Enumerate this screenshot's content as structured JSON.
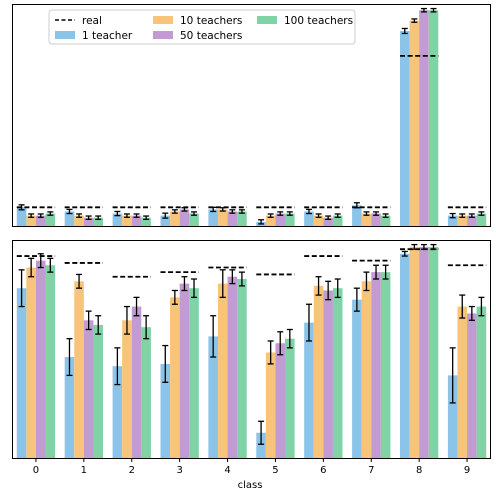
{
  "chart_data": {
    "type": "bar",
    "xlabel": "class",
    "categories": [
      "0",
      "1",
      "2",
      "3",
      "4",
      "5",
      "6",
      "7",
      "8",
      "9"
    ],
    "legend": {
      "placement": "upper-left",
      "entries": [
        "real",
        "1 teacher",
        "10 teachers",
        "50 teachers",
        "100 teachers"
      ]
    },
    "colors": {
      "real": "#000000",
      "1 teacher": "#8bc4e8",
      "10 teachers": "#f7c47a",
      "50 teachers": "#c39bd3",
      "100 teachers": "#7fd3a5"
    },
    "panels": [
      {
        "panel": "top",
        "ylim": [
          0,
          1
        ],
        "real": [
          0.09,
          0.09,
          0.09,
          0.09,
          0.09,
          0.09,
          0.09,
          0.09,
          0.82,
          0.09
        ],
        "series": [
          {
            "name": "1 teacher",
            "values": [
              0.09,
              0.07,
              0.06,
              0.05,
              0.08,
              0.02,
              0.07,
              0.1,
              0.94,
              0.05
            ],
            "errors": [
              0.012,
              0.01,
              0.01,
              0.012,
              0.01,
              0.01,
              0.01,
              0.012,
              0.012,
              0.01
            ]
          },
          {
            "name": "10 teachers",
            "values": [
              0.05,
              0.05,
              0.05,
              0.07,
              0.08,
              0.05,
              0.05,
              0.06,
              0.99,
              0.05
            ],
            "errors": [
              0.008,
              0.008,
              0.008,
              0.008,
              0.008,
              0.008,
              0.008,
              0.008,
              0.008,
              0.008
            ]
          },
          {
            "name": "50 teachers",
            "values": [
              0.05,
              0.04,
              0.05,
              0.08,
              0.07,
              0.06,
              0.04,
              0.06,
              1.04,
              0.05
            ],
            "errors": [
              0.008,
              0.008,
              0.008,
              0.008,
              0.008,
              0.008,
              0.008,
              0.008,
              0.008,
              0.008
            ]
          },
          {
            "name": "100 teachers",
            "values": [
              0.06,
              0.04,
              0.04,
              0.06,
              0.07,
              0.06,
              0.05,
              0.05,
              1.04,
              0.06
            ],
            "errors": [
              0.008,
              0.008,
              0.008,
              0.008,
              0.008,
              0.008,
              0.008,
              0.008,
              0.008,
              0.008
            ]
          }
        ]
      },
      {
        "panel": "bottom",
        "ylim": [
          0,
          1
        ],
        "real": [
          0.88,
          0.85,
          0.79,
          0.81,
          0.83,
          0.8,
          0.88,
          0.86,
          0.91,
          0.84
        ],
        "series": [
          {
            "name": "1 teacher",
            "values": [
              0.74,
              0.44,
              0.4,
              0.41,
              0.53,
              0.11,
              0.59,
              0.69,
              0.89,
              0.36
            ],
            "errors": [
              0.08,
              0.08,
              0.08,
              0.08,
              0.09,
              0.05,
              0.08,
              0.05,
              0.01,
              0.12
            ]
          },
          {
            "name": "10 teachers",
            "values": [
              0.83,
              0.77,
              0.6,
              0.7,
              0.76,
              0.46,
              0.75,
              0.77,
              0.92,
              0.66
            ],
            "errors": [
              0.04,
              0.03,
              0.06,
              0.03,
              0.06,
              0.05,
              0.04,
              0.04,
              0.01,
              0.05
            ]
          },
          {
            "name": "50 teachers",
            "values": [
              0.86,
              0.6,
              0.66,
              0.76,
              0.79,
              0.5,
              0.73,
              0.81,
              0.92,
              0.63
            ],
            "errors": [
              0.03,
              0.04,
              0.04,
              0.03,
              0.03,
              0.05,
              0.04,
              0.03,
              0.01,
              0.03
            ]
          },
          {
            "name": "100 teachers",
            "values": [
              0.84,
              0.58,
              0.57,
              0.74,
              0.78,
              0.52,
              0.74,
              0.81,
              0.92,
              0.66
            ],
            "errors": [
              0.03,
              0.04,
              0.05,
              0.04,
              0.03,
              0.04,
              0.04,
              0.03,
              0.01,
              0.04
            ]
          }
        ]
      }
    ]
  }
}
